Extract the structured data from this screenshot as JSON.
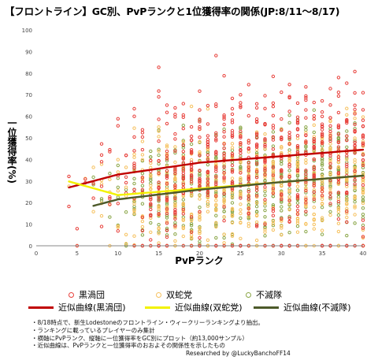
{
  "title": "【フロントライン】GC別、PvPランクと1位獲得率の関係(JP:8/11〜8/17)",
  "chart_data": {
    "type": "scatter",
    "xlabel": "PvPランク",
    "ylabel": "一位獲得率(%)",
    "xlim": [
      0,
      40
    ],
    "ylim": [
      0,
      100
    ],
    "xticks": [
      0,
      5,
      10,
      15,
      20,
      25,
      30,
      35,
      40
    ],
    "yticks": [
      0,
      10,
      20,
      30,
      40,
      50,
      60,
      70,
      80,
      90,
      100
    ],
    "grid": false,
    "legend_position": "bottom",
    "series": [
      {
        "name": "黒渦団",
        "color": "#e8413c",
        "marker": "open-circle"
      },
      {
        "name": "双蛇党",
        "color": "#f6c15e",
        "marker": "open-circle"
      },
      {
        "name": "不滅隊",
        "color": "#8aa647",
        "marker": "open-circle"
      }
    ],
    "trendlines": [
      {
        "name": "近似曲線(黒渦団)",
        "color": "#c00000",
        "x": [
          4,
          10,
          20,
          30,
          40
        ],
        "y": [
          27,
          33,
          38.5,
          41.5,
          44.5
        ]
      },
      {
        "name": "近似曲線(双蛇党)",
        "color": "#f2f200",
        "x": [
          4,
          10,
          20,
          30,
          40
        ],
        "y": [
          29.8,
          23.5,
          26.5,
          29.5,
          32.5
        ]
      },
      {
        "name": "近似曲線(不滅隊)",
        "color": "#4d5a2a",
        "x": [
          7,
          10,
          20,
          30,
          40
        ],
        "y": [
          18.5,
          21.5,
          26,
          29.5,
          32.5
        ]
      }
    ]
  },
  "notes": [
    "・8/18時点で、新生Lodestoneのフロントライン・ウィークリーランキングより抽出。",
    "・ランキングに載っているプレイヤーのみ集計",
    "・横軸にPvPランク、縦軸に一位獲得率をGC別にプロット（約13,000サンプル）",
    "・近似曲線は、PvPランクと一位獲得率のおおよその関係性を示したもの"
  ],
  "credit": "Researched by @LuckyBanchoFF14"
}
